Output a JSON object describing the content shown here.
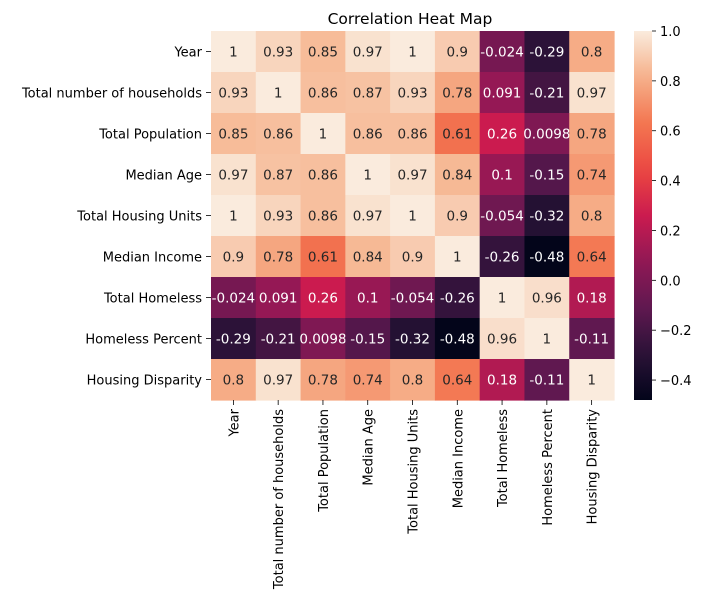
{
  "chart_data": {
    "type": "heatmap",
    "title": "Correlation Heat Map",
    "row_labels": [
      "Year",
      "Total number of households",
      "Total Population",
      "Median Age",
      "Total Housing Units",
      "Median Income",
      "Total Homeless",
      "Homeless Percent",
      "Housing Disparity"
    ],
    "col_labels": [
      "Year",
      "Total number of households",
      "Total Population",
      "Median Age",
      "Total Housing Units",
      "Median Income",
      "Total Homeless",
      "Homeless Percent",
      "Housing Disparity"
    ],
    "values": [
      [
        1,
        0.93,
        0.85,
        0.97,
        1,
        0.9,
        -0.024,
        -0.29,
        0.8
      ],
      [
        0.93,
        1,
        0.86,
        0.87,
        0.93,
        0.78,
        0.091,
        -0.21,
        0.97
      ],
      [
        0.85,
        0.86,
        1,
        0.86,
        0.86,
        0.61,
        0.26,
        0.0098,
        0.78
      ],
      [
        0.97,
        0.87,
        0.86,
        1,
        0.97,
        0.84,
        0.1,
        -0.15,
        0.74
      ],
      [
        1,
        0.93,
        0.86,
        0.97,
        1,
        0.9,
        -0.054,
        -0.32,
        0.8
      ],
      [
        0.9,
        0.78,
        0.61,
        0.84,
        0.9,
        1,
        -0.26,
        -0.48,
        0.64
      ],
      [
        -0.024,
        0.091,
        0.26,
        0.1,
        -0.054,
        -0.26,
        1,
        0.96,
        0.18
      ],
      [
        -0.29,
        -0.21,
        0.0098,
        -0.15,
        -0.32,
        -0.48,
        0.96,
        1,
        -0.11
      ],
      [
        0.8,
        0.97,
        0.78,
        0.74,
        0.8,
        0.64,
        0.18,
        -0.11,
        1
      ]
    ],
    "labels": [
      [
        "1",
        "0.93",
        "0.85",
        "0.97",
        "1",
        "0.9",
        "-0.024",
        "-0.29",
        "0.8"
      ],
      [
        "0.93",
        "1",
        "0.86",
        "0.87",
        "0.93",
        "0.78",
        "0.091",
        "-0.21",
        "0.97"
      ],
      [
        "0.85",
        "0.86",
        "1",
        "0.86",
        "0.86",
        "0.61",
        "0.26",
        "0.0098",
        "0.78"
      ],
      [
        "0.97",
        "0.87",
        "0.86",
        "1",
        "0.97",
        "0.84",
        "0.1",
        "-0.15",
        "0.74"
      ],
      [
        "1",
        "0.93",
        "0.86",
        "0.97",
        "1",
        "0.9",
        "-0.054",
        "-0.32",
        "0.8"
      ],
      [
        "0.9",
        "0.78",
        "0.61",
        "0.84",
        "0.9",
        "1",
        "-0.26",
        "-0.48",
        "0.64"
      ],
      [
        "-0.024",
        "0.091",
        "0.26",
        "0.1",
        "-0.054",
        "-0.26",
        "1",
        "0.96",
        "0.18"
      ],
      [
        "-0.29",
        "-0.21",
        "0.0098",
        "-0.15",
        "-0.32",
        "-0.48",
        "0.96",
        "1",
        "-0.11"
      ],
      [
        "0.8",
        "0.97",
        "0.78",
        "0.74",
        "0.8",
        "0.64",
        "0.18",
        "-0.11",
        "1"
      ]
    ],
    "colormap": "rocket",
    "vmin": -0.48,
    "vmax": 1.0,
    "colorbar_ticks": [
      "1.0",
      "0.8",
      "0.6",
      "0.4",
      "0.2",
      "0.0",
      "−0.2",
      "−0.4"
    ],
    "colorbar_tick_values": [
      1.0,
      0.8,
      0.6,
      0.4,
      0.2,
      0.0,
      -0.2,
      -0.4
    ],
    "grid": false,
    "legend": "colorbar-right"
  }
}
